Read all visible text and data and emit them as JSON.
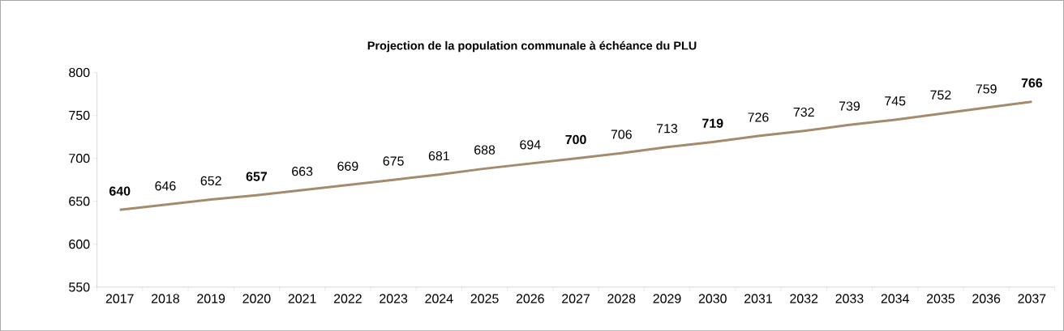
{
  "chart_data": {
    "type": "line",
    "title": "Projection de la population communale à échéance du PLU",
    "categories": [
      "2017",
      "2018",
      "2019",
      "2020",
      "2021",
      "2022",
      "2023",
      "2024",
      "2025",
      "2026",
      "2027",
      "2028",
      "2029",
      "2030",
      "2031",
      "2032",
      "2033",
      "2034",
      "2035",
      "2036",
      "2037"
    ],
    "series": [
      {
        "color": "#a38b6b",
        "values": [
          640,
          646,
          652,
          657,
          663,
          669,
          675,
          681,
          688,
          694,
          700,
          706,
          713,
          719,
          726,
          732,
          739,
          745,
          752,
          759,
          766
        ],
        "value_labels": [
          "**640**",
          "646",
          "652",
          "**657**",
          "663",
          "669",
          "675",
          "681",
          "688",
          "694",
          "**700**",
          "706",
          "713",
          "**719**",
          "726",
          "732",
          "739",
          "745",
          "752",
          "759",
          "**766**"
        ]
      }
    ],
    "ylim": [
      550,
      800
    ],
    "yticks": [
      550,
      600,
      650,
      700,
      750,
      800
    ],
    "grid": false,
    "marker": "none",
    "line_style": "solid"
  }
}
